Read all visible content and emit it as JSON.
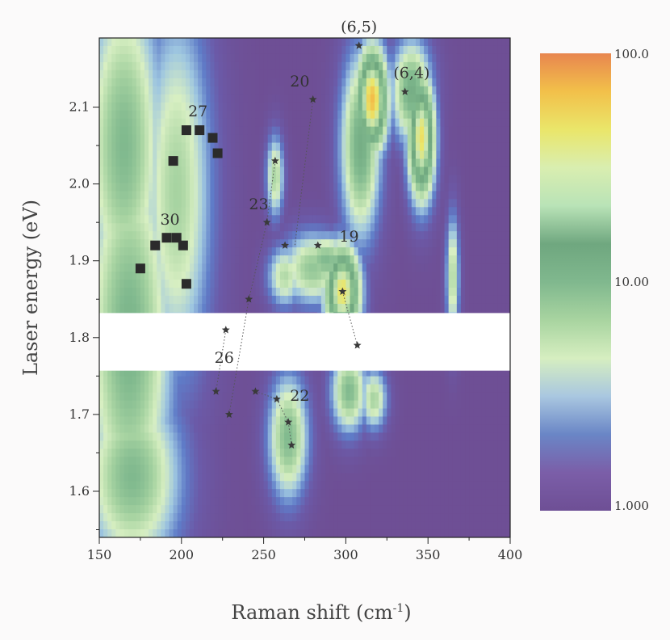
{
  "chart_data": {
    "type": "heatmap",
    "xlabel": "Raman shift (cm",
    "xlabel_sup": "-1",
    "xlabel_tail": ")",
    "ylabel": "Laser energy (eV)",
    "xlim": [
      150,
      400
    ],
    "ylim": [
      1.54,
      2.19
    ],
    "x_ticks": [
      150,
      200,
      250,
      300,
      350,
      400
    ],
    "y_ticks": [
      1.6,
      1.7,
      1.8,
      1.9,
      2.0,
      2.1
    ],
    "y_tick_labels": [
      "1.6",
      "1.7",
      "1.8",
      "1.9",
      "2.0",
      "2.1"
    ],
    "gap_band": [
      1.757,
      1.832
    ],
    "colorbar": {
      "scale": "log",
      "labels": [
        "100.0",
        "10.00",
        "1.000"
      ],
      "label_values": [
        100,
        10,
        1
      ],
      "colors": [
        "#e8864f",
        "#f2c04a",
        "#eae66a",
        "#d9eeb0",
        "#b9e3b7",
        "#6fa77f",
        "#80b88e",
        "#a8d4a0",
        "#d6eec0",
        "#a9c7e0",
        "#6a86c6",
        "#7b5ea8",
        "#6e4f95"
      ]
    },
    "colormap": [
      "#6e4f95",
      "#6b5aa8",
      "#5f7cc8",
      "#9ec6e0",
      "#d8efc2",
      "#a8d4a2",
      "#80b98e",
      "#6fa77f",
      "#8fc592",
      "#c9e6b3",
      "#eae66a",
      "#f2c04a",
      "#e8864f"
    ],
    "blobs": [
      {
        "x": 165,
        "y": 2.05,
        "sx": 18,
        "sy": 0.16,
        "v": 0.5
      },
      {
        "x": 168,
        "y": 1.8,
        "sx": 20,
        "sy": 0.2,
        "v": 0.52
      },
      {
        "x": 170,
        "y": 1.62,
        "sx": 22,
        "sy": 0.09,
        "v": 0.5
      },
      {
        "x": 197,
        "y": 1.99,
        "sx": 16,
        "sy": 0.18,
        "v": 0.42
      },
      {
        "x": 265,
        "y": 1.67,
        "sx": 9,
        "sy": 0.06,
        "v": 0.5
      },
      {
        "x": 257,
        "y": 2.01,
        "sx": 4,
        "sy": 0.04,
        "v": 0.42
      },
      {
        "x": 263,
        "y": 1.88,
        "sx": 8,
        "sy": 0.03,
        "v": 0.4
      },
      {
        "x": 280,
        "y": 1.89,
        "sx": 14,
        "sy": 0.035,
        "v": 0.46
      },
      {
        "x": 288,
        "y": 1.9,
        "sx": 12,
        "sy": 0.025,
        "v": 0.5
      },
      {
        "x": 298,
        "y": 1.86,
        "sx": 8,
        "sy": 0.045,
        "v": 0.85
      },
      {
        "x": 302,
        "y": 1.73,
        "sx": 8,
        "sy": 0.04,
        "v": 0.5
      },
      {
        "x": 316,
        "y": 2.11,
        "sx": 7,
        "sy": 0.05,
        "v": 0.92
      },
      {
        "x": 309,
        "y": 2.05,
        "sx": 9,
        "sy": 0.09,
        "v": 0.55
      },
      {
        "x": 317,
        "y": 1.72,
        "sx": 6,
        "sy": 0.03,
        "v": 0.42
      },
      {
        "x": 346,
        "y": 2.06,
        "sx": 6,
        "sy": 0.06,
        "v": 0.85
      },
      {
        "x": 340,
        "y": 2.12,
        "sx": 9,
        "sy": 0.05,
        "v": 0.55
      },
      {
        "x": 365,
        "y": 1.88,
        "sx": 3,
        "sy": 0.06,
        "v": 0.42
      }
    ],
    "squares_group27": [
      [
        203,
        2.07
      ],
      [
        211,
        2.07
      ],
      [
        219,
        2.06
      ],
      [
        195,
        2.03
      ],
      [
        222,
        2.04
      ]
    ],
    "squares_group30": [
      [
        175,
        1.89
      ],
      [
        184,
        1.92
      ],
      [
        191,
        1.93
      ],
      [
        197,
        1.93
      ],
      [
        201,
        1.92
      ],
      [
        203,
        1.87
      ]
    ],
    "stars": [
      [
        308,
        2.18
      ],
      [
        336,
        2.12
      ],
      [
        280,
        2.11
      ],
      [
        257,
        2.03
      ],
      [
        252,
        1.95
      ],
      [
        263,
        1.92
      ],
      [
        283,
        1.92
      ],
      [
        298,
        1.86
      ],
      [
        307,
        1.79
      ],
      [
        241,
        1.85
      ],
      [
        227,
        1.81
      ],
      [
        221,
        1.73
      ],
      [
        229,
        1.7
      ],
      [
        245,
        1.73
      ],
      [
        258,
        1.72
      ],
      [
        265,
        1.69
      ],
      [
        267,
        1.66
      ]
    ],
    "dotted_lines": [
      [
        [
          280,
          2.11
        ],
        [
          269,
          1.92
        ]
      ],
      [
        [
          257,
          2.03
        ],
        [
          252,
          1.95
        ],
        [
          241,
          1.85
        ],
        [
          229,
          1.7
        ]
      ],
      [
        [
          298,
          1.86
        ],
        [
          307,
          1.79
        ]
      ],
      [
        [
          227,
          1.81
        ],
        [
          221,
          1.73
        ]
      ],
      [
        [
          245,
          1.73
        ],
        [
          258,
          1.72
        ],
        [
          265,
          1.69
        ],
        [
          267,
          1.66
        ]
      ]
    ],
    "annotations": [
      {
        "text": "(6,5)",
        "x": 308,
        "y": 2.198
      },
      {
        "text": "(6,4)",
        "x": 340,
        "y": 2.138
      },
      {
        "text": "20",
        "x": 272,
        "y": 2.127
      },
      {
        "text": "27",
        "x": 210,
        "y": 2.088
      },
      {
        "text": "23",
        "x": 247,
        "y": 1.967
      },
      {
        "text": "30",
        "x": 193,
        "y": 1.947
      },
      {
        "text": "19",
        "x": 302,
        "y": 1.925
      },
      {
        "text": "26",
        "x": 226,
        "y": 1.767
      },
      {
        "text": "22",
        "x": 272,
        "y": 1.718
      }
    ]
  }
}
